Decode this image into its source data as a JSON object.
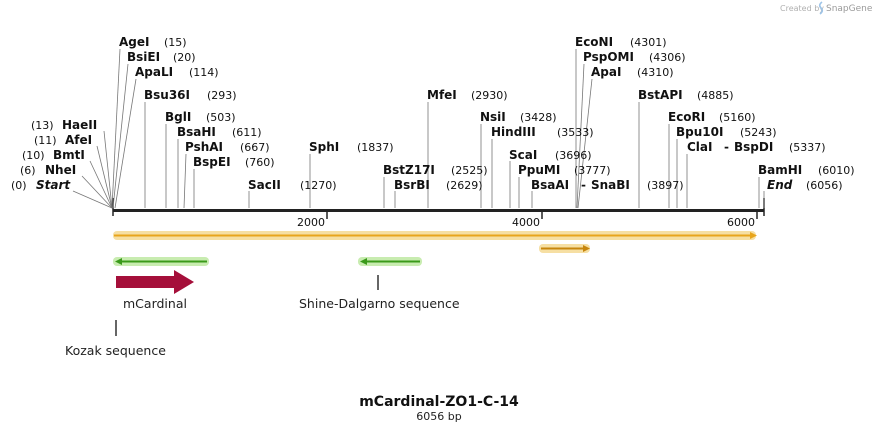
{
  "credit": {
    "prefix": "Created by",
    "brand": "SnapGene"
  },
  "plasmid": {
    "name": "mCardinal-ZO1-C-14",
    "size_label": "6056 bp",
    "length": 6056
  },
  "ruler_ticks": [
    {
      "bp": 2000,
      "label": "2000"
    },
    {
      "bp": 4000,
      "label": "4000"
    },
    {
      "bp": 6000,
      "label": "6000"
    }
  ],
  "sites": [
    {
      "id": "AgeI",
      "name": "AgeI",
      "pos": "(15)",
      "bp": 15
    },
    {
      "id": "BsiEI",
      "name": "BsiEI",
      "pos": "(20)",
      "bp": 20
    },
    {
      "id": "ApaLI",
      "name": "ApaLI",
      "pos": "(114)",
      "bp": 114
    },
    {
      "id": "Bsu36I",
      "name": "Bsu36I",
      "pos": "(293)",
      "bp": 293
    },
    {
      "id": "BglI",
      "name": "BglI",
      "pos": "(503)",
      "bp": 503
    },
    {
      "id": "BsaHI",
      "name": "BsaHI",
      "pos": "(611)",
      "bp": 611
    },
    {
      "id": "PshAI",
      "name": "PshAI",
      "pos": "(667)",
      "bp": 667
    },
    {
      "id": "BspEI",
      "name": "BspEI",
      "pos": "(760)",
      "bp": 760
    },
    {
      "id": "SacII",
      "name": "SacII",
      "pos": "(1270)",
      "bp": 1270
    },
    {
      "id": "SphI",
      "name": "SphI",
      "pos": "(1837)",
      "bp": 1837
    },
    {
      "id": "BstZ17I",
      "name": "BstZ17I",
      "pos": "(2525)",
      "bp": 2525
    },
    {
      "id": "BsrBI",
      "name": "BsrBI",
      "pos": "(2629)",
      "bp": 2629
    },
    {
      "id": "MfeI",
      "name": "MfeI",
      "pos": "(2930)",
      "bp": 2930
    },
    {
      "id": "NsiI",
      "name": "NsiI",
      "pos": "(3428)",
      "bp": 3428
    },
    {
      "id": "HindIII",
      "name": "HindIII",
      "pos": "(3533)",
      "bp": 3533
    },
    {
      "id": "ScaI",
      "name": "ScaI",
      "pos": "(3696)",
      "bp": 3696
    },
    {
      "id": "PpuMI",
      "name": "PpuMI",
      "pos": "(3777)",
      "bp": 3777
    },
    {
      "id": "BsaAI",
      "name": "BsaAI",
      "pos": "(3897)",
      "bp": 3897
    },
    {
      "id": "SnaBI",
      "name": "SnaBI",
      "pos": "",
      "bp": 3897
    },
    {
      "id": "EcoNI",
      "name": "EcoNI",
      "pos": "(4301)",
      "bp": 4301
    },
    {
      "id": "PspOMI",
      "name": "PspOMI",
      "pos": "(4306)",
      "bp": 4306
    },
    {
      "id": "ApaI",
      "name": "ApaI",
      "pos": "(4310)",
      "bp": 4310
    },
    {
      "id": "BstAPI",
      "name": "BstAPI",
      "pos": "(4885)",
      "bp": 4885
    },
    {
      "id": "EcoRI",
      "name": "EcoRI",
      "pos": "(5160)",
      "bp": 5160
    },
    {
      "id": "Bpu10I",
      "name": "Bpu10I",
      "pos": "(5243)",
      "bp": 5243
    },
    {
      "id": "ClaI",
      "name": "ClaI",
      "pos": "(5337)",
      "bp": 5337
    },
    {
      "id": "BspDI",
      "name": "BspDI",
      "pos": "",
      "bp": 5337
    },
    {
      "id": "BamHI",
      "name": "BamHI",
      "pos": "(6010)",
      "bp": 6010
    },
    {
      "id": "End",
      "name": "End",
      "pos": "(6056)",
      "bp": 6056
    },
    {
      "id": "HaeII",
      "name": "HaeII",
      "pos": "(13)",
      "bp": 13
    },
    {
      "id": "AfeI",
      "name": "AfeI",
      "pos": "(11)",
      "bp": 11
    },
    {
      "id": "BmtI",
      "name": "BmtI",
      "pos": "(10)",
      "bp": 10
    },
    {
      "id": "NheI",
      "name": "NheI",
      "pos": "(6)",
      "bp": 6
    },
    {
      "id": "Start",
      "name": "Start",
      "pos": "(0)",
      "bp": 0
    }
  ],
  "features": [
    {
      "id": "orf-main",
      "label": "",
      "start_bp": 0,
      "end_bp": 6056,
      "color": "#e8a51c",
      "glow": "#f6dfa3",
      "strand": "+"
    },
    {
      "id": "orf-small",
      "label": "",
      "start_bp": 3980,
      "end_bp": 4450,
      "color": "#e8a51c",
      "glow": "#f6dfa3",
      "strand": "+"
    },
    {
      "id": "orf-rev-1",
      "label": "",
      "start_bp": 0,
      "end_bp": 870,
      "color": "#3a9a1a",
      "glow": "#c8ecb0",
      "strand": "-"
    },
    {
      "id": "orf-rev-2",
      "label": "",
      "start_bp": 2280,
      "end_bp": 2850,
      "color": "#3a9a1a",
      "glow": "#c8ecb0",
      "strand": "-"
    },
    {
      "id": "mCardinal",
      "label": "mCardinal",
      "start_bp": 20,
      "end_bp": 740,
      "color": "#a50f3a",
      "strand": "+"
    },
    {
      "id": "shine-dalgarno",
      "label": "Shine-Dalgarno sequence",
      "bp": 2445,
      "color": "#333333"
    },
    {
      "id": "kozak",
      "label": "Kozak sequence",
      "bp": 8,
      "color": "#333333"
    }
  ]
}
